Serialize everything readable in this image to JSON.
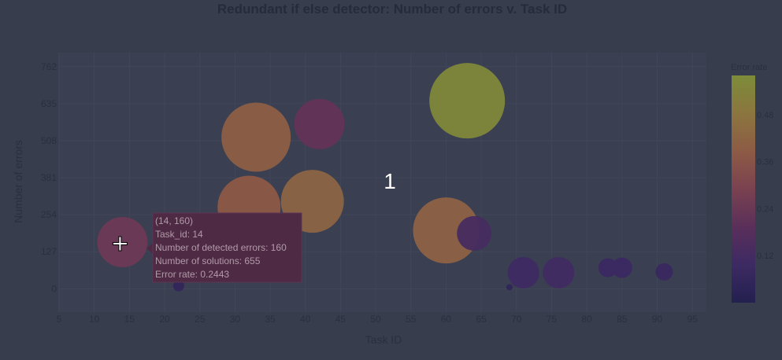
{
  "chart_data": {
    "type": "scatter",
    "title": "Redundant if else detector: Number of errors v. Task ID",
    "xlabel": "Task ID",
    "ylabel": "Number of errors",
    "xlim": [
      5,
      97
    ],
    "ylim": [
      -80,
      810
    ],
    "xticks": [
      5,
      10,
      15,
      20,
      25,
      30,
      35,
      40,
      45,
      50,
      55,
      60,
      65,
      70,
      75,
      80,
      85,
      90,
      95
    ],
    "yticks": [
      0,
      127,
      254,
      381,
      508,
      635,
      762
    ],
    "grid": true,
    "colorbar": {
      "title": "Error rate",
      "range": [
        0,
        0.58
      ],
      "ticks": [
        0.12,
        0.24,
        0.36,
        0.48
      ],
      "colors": [
        "#23204f",
        "#3d2a63",
        "#5a2f5a",
        "#7a4250",
        "#8d5b45",
        "#8b763f",
        "#7d8c39"
      ]
    },
    "points": [
      {
        "x": 14,
        "y": 160,
        "rate": 0.2443,
        "size": 32
      },
      {
        "x": 22,
        "y": 10,
        "rate": 0.06,
        "size": 7
      },
      {
        "x": 32,
        "y": 280,
        "rate": 0.38,
        "size": 40
      },
      {
        "x": 33,
        "y": 520,
        "rate": 0.4,
        "size": 44
      },
      {
        "x": 41,
        "y": 300,
        "rate": 0.42,
        "size": 40
      },
      {
        "x": 42,
        "y": 565,
        "rate": 0.22,
        "size": 32
      },
      {
        "x": 60,
        "y": 200,
        "rate": 0.41,
        "size": 42
      },
      {
        "x": 63,
        "y": 645,
        "rate": 0.56,
        "size": 48
      },
      {
        "x": 64,
        "y": 190,
        "rate": 0.13,
        "size": 22
      },
      {
        "x": 69,
        "y": 5,
        "rate": 0.05,
        "size": 4
      },
      {
        "x": 71,
        "y": 55,
        "rate": 0.1,
        "size": 20
      },
      {
        "x": 76,
        "y": 55,
        "rate": 0.11,
        "size": 20
      },
      {
        "x": 83,
        "y": 72,
        "rate": 0.09,
        "size": 12
      },
      {
        "x": 85,
        "y": 72,
        "rate": 0.09,
        "size": 13
      },
      {
        "x": 91,
        "y": 58,
        "rate": 0.08,
        "size": 11
      }
    ],
    "tooltip": {
      "lines": [
        "(14, 160)",
        "Task_id: 14",
        "Number of detected errors: 160",
        "Number of solutions: 655",
        "Error rate: 0.2443"
      ]
    },
    "overlay_label": "1"
  }
}
